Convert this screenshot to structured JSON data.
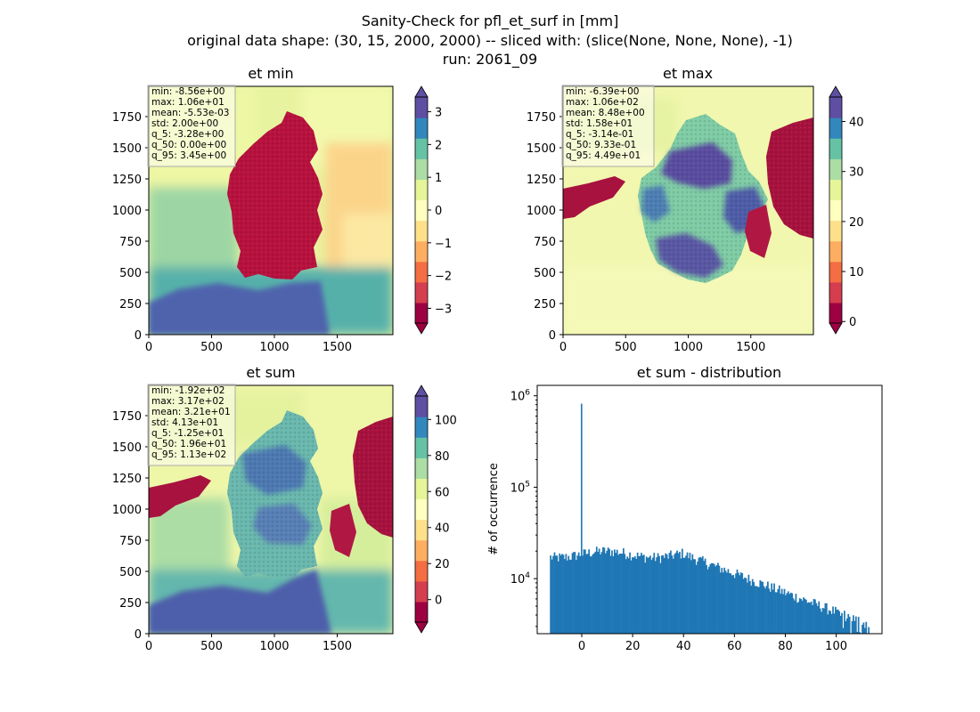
{
  "suptitle": [
    "Sanity-Check for pfl_et_surf in [mm]",
    "original data shape: (30, 15, 2000, 2000) -- sliced with: (slice(None, None, None), -1)",
    "run: 2061_09"
  ],
  "colors": {
    "cmap": [
      "#9e0142",
      "#d53e4f",
      "#f46d43",
      "#fdae61",
      "#fee08b",
      "#ffffbf",
      "#e6f598",
      "#abdda4",
      "#66c2a5",
      "#3288bd",
      "#5e4fa2"
    ],
    "hist_bar": "#1f77b4"
  },
  "panels": [
    {
      "title": "et min",
      "map": "min",
      "x_ticks": [
        "0",
        "500",
        "1000",
        "1500"
      ],
      "y_ticks": [
        "0",
        "250",
        "500",
        "750",
        "1000",
        "1250",
        "1500",
        "1750"
      ],
      "stats": [
        "min: -8.56e+00",
        "max: 1.06e+01",
        "mean: -5.53e-03",
        "std: 2.00e+00",
        "q_5: -3.28e+00",
        "q_50: 0.00e+00",
        "q_95: 3.45e+00"
      ],
      "colorbar": {
        "vmin": -3.45,
        "vmax": 3.45,
        "ticks": [
          -3,
          -2,
          -1,
          0,
          1,
          2,
          3
        ],
        "tick_labels": [
          "−3",
          "−2",
          "−1",
          "0",
          "1",
          "2",
          "3"
        ]
      }
    },
    {
      "title": "et max",
      "map": "max",
      "x_ticks": [
        "0",
        "500",
        "1000",
        "1500"
      ],
      "y_ticks": [
        "0",
        "250",
        "500",
        "750",
        "1000",
        "1250",
        "1500",
        "1750"
      ],
      "stats": [
        "min: -6.39e+00",
        "max: 1.06e+02",
        "mean: 8.48e+00",
        "std: 1.58e+01",
        "q_5: -3.14e-01",
        "q_50: 9.33e-01",
        "q_95: 4.49e+01"
      ],
      "colorbar": {
        "vmin": -0.314,
        "vmax": 44.9,
        "ticks": [
          0,
          10,
          20,
          30,
          40
        ],
        "tick_labels": [
          "0",
          "10",
          "20",
          "30",
          "40"
        ]
      }
    },
    {
      "title": "et sum",
      "map": "sum",
      "x_ticks": [
        "0",
        "500",
        "1000",
        "1500"
      ],
      "y_ticks": [
        "0",
        "250",
        "500",
        "750",
        "1000",
        "1250",
        "1500",
        "1750"
      ],
      "stats": [
        "min: -1.92e+02",
        "max: 3.17e+02",
        "mean: 3.21e+01",
        "std: 4.13e+01",
        "q_5: -1.25e+01",
        "q_50: 1.96e+01",
        "q_95: 1.13e+02"
      ],
      "colorbar": {
        "vmin": -12.5,
        "vmax": 113,
        "ticks": [
          0,
          20,
          40,
          60,
          80,
          100
        ],
        "tick_labels": [
          "0",
          "20",
          "40",
          "60",
          "80",
          "100"
        ]
      }
    }
  ],
  "chart_data": [
    {
      "type": "heatmap",
      "title": "et min",
      "xlim": [
        0,
        2000
      ],
      "ylim": [
        0,
        2000
      ],
      "colorbar_range": [
        -3.45,
        3.45
      ]
    },
    {
      "type": "heatmap",
      "title": "et max",
      "xlim": [
        0,
        2000
      ],
      "ylim": [
        0,
        2000
      ],
      "colorbar_range": [
        -0.314,
        44.9
      ]
    },
    {
      "type": "heatmap",
      "title": "et sum",
      "xlim": [
        0,
        2000
      ],
      "ylim": [
        0,
        2000
      ],
      "colorbar_range": [
        -12.5,
        113
      ]
    },
    {
      "type": "bar",
      "title": "et sum - distribution",
      "ylabel": "# of occurrence",
      "yscale": "log",
      "ylim": [
        2500,
        1300000
      ],
      "xlim": [
        -17.5,
        118
      ],
      "x_ticks": [
        0,
        20,
        40,
        60,
        80,
        100
      ],
      "y_tick_labels": [
        "10^4",
        "10^5",
        "10^6"
      ],
      "bin_range": [
        -12.5,
        113
      ],
      "spike": {
        "x": 0,
        "value": 820000
      }
    }
  ]
}
